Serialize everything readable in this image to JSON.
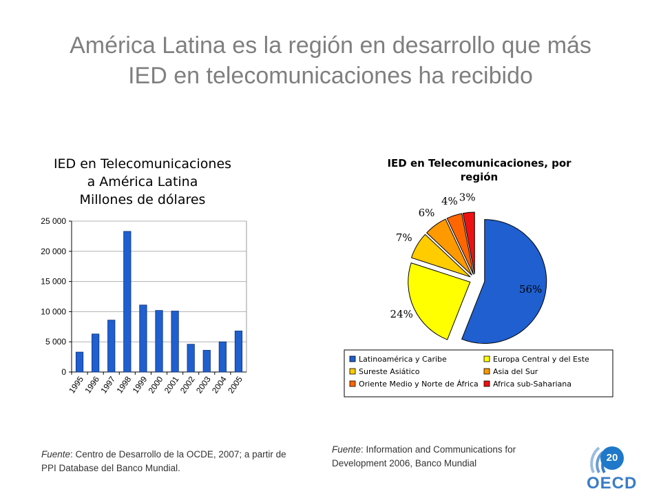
{
  "slide": {
    "title_line1": "América Latina es la región en desarrollo que más",
    "title_line2": "IED en telecomunicaciones ha recibido",
    "page_number": "20",
    "logo_text": "OECD"
  },
  "sources": {
    "left_prefix": "Fuente",
    "left_text": ": Centro de Desarrollo de la OCDE, 2007; a partir de PPI Database del Banco Mundial.",
    "right_prefix": "Fuente",
    "right_text": ": Information and Communications for Development 2006, Banco Mundial"
  },
  "colors": {
    "bar": "#1f5fcf",
    "title": "#7f7f7f",
    "logo_blue": "#1f78c8"
  },
  "chart_data": [
    {
      "type": "bar",
      "title": [
        "IED en Telecomunicaciones",
        "a América Latina",
        "Millones de dólares"
      ],
      "categories": [
        "1995",
        "1996",
        "1997",
        "1998",
        "1999",
        "2000",
        "2001",
        "2002",
        "2003",
        "2004",
        "2005"
      ],
      "values": [
        3300,
        6300,
        8600,
        23300,
        11100,
        10200,
        10100,
        4600,
        3600,
        5000,
        6800
      ],
      "ylim": [
        0,
        25000
      ],
      "yticks": [
        0,
        5000,
        10000,
        15000,
        20000,
        25000
      ],
      "ytick_labels": [
        "0",
        "5 000",
        "10 000",
        "15 000",
        "20 000",
        "25 000"
      ],
      "grid": true,
      "xlabel": "",
      "ylabel": ""
    },
    {
      "type": "pie",
      "title": [
        "IED en Telecomunicaciones, por",
        "región"
      ],
      "slices": [
        {
          "name": "Latinoamérica y Caribe",
          "value": 56,
          "label": "56%",
          "color": "#1f5fcf",
          "exploded": true
        },
        {
          "name": "Europa Central y del Este",
          "value": 24,
          "label": "24%",
          "color": "#ffff00",
          "exploded": true
        },
        {
          "name": "Sureste Asiático",
          "value": 7,
          "label": "7%",
          "color": "#ffcc00",
          "exploded": true
        },
        {
          "name": "Asia del Sur",
          "value": 6,
          "label": "6%",
          "color": "#ff9900",
          "exploded": true
        },
        {
          "name": "Oriente Medio y Norte de África",
          "value": 4,
          "label": "4%",
          "color": "#ff6600",
          "exploded": true
        },
        {
          "name": "Africa sub-Sahariana",
          "value": 3,
          "label": "3%",
          "color": "#ee1111",
          "exploded": true
        }
      ],
      "legend_placement": "bottom"
    }
  ]
}
